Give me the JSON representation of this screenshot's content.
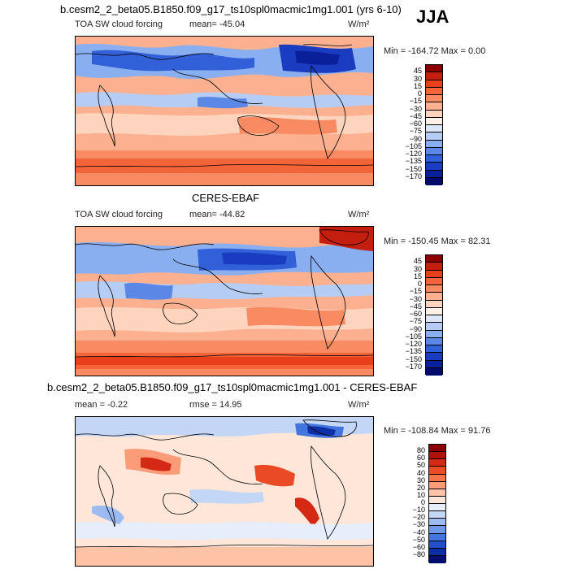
{
  "season": "JJA",
  "panels": [
    {
      "title": "b.cesm2_2_beta05.B1850.f09_g17_ts10spl0macmic1mg1.001 (yrs 6-10)",
      "variable": "TOA SW cloud forcing",
      "stat1": "mean= -45.04",
      "stat2": "",
      "units": "W/m²",
      "minmax": "Min = -164.72 Max =    0.00",
      "levels": [
        "45",
        "30",
        "15",
        "0",
        "−15",
        "−30",
        "−45",
        "−60",
        "−75",
        "−90",
        "−105",
        "−120",
        "−135",
        "−150",
        "−170"
      ],
      "colors": [
        "#8b0000",
        "#c41e0e",
        "#e8401a",
        "#f4643a",
        "#f98b63",
        "#fbb08f",
        "#fdd4bd",
        "#fef0e6",
        "#dce8fa",
        "#b5cdf5",
        "#8aaff0",
        "#5b88e6",
        "#3160d8",
        "#1a3cc0",
        "#0a1f9a",
        "#000c6a"
      ]
    },
    {
      "title": "CERES-EBAF",
      "variable": "TOA SW cloud forcing",
      "stat1": "mean= -44.82",
      "stat2": "",
      "units": "W/m²",
      "minmax": "Min = -150.45 Max =  82.31",
      "levels": [
        "45",
        "30",
        "15",
        "0",
        "−15",
        "−30",
        "−45",
        "−60",
        "−75",
        "−90",
        "−105",
        "−120",
        "−135",
        "−150",
        "−170"
      ],
      "colors": [
        "#8b0000",
        "#c41e0e",
        "#e8401a",
        "#f4643a",
        "#f98b63",
        "#fbb08f",
        "#fdd4bd",
        "#fef0e6",
        "#dce8fa",
        "#b5cdf5",
        "#8aaff0",
        "#5b88e6",
        "#3160d8",
        "#1a3cc0",
        "#0a1f9a",
        "#000c6a"
      ]
    },
    {
      "title": "b.cesm2_2_beta05.B1850.f09_g17_ts10spl0macmic1mg1.001 - CERES-EBAF",
      "variable": "",
      "stat1": "mean =  -0.22",
      "stat2": "rmse =  14.95",
      "units": "W/m²",
      "minmax": "Min = -108.84 Max =  91.76",
      "levels": [
        "80",
        "60",
        "50",
        "40",
        "30",
        "20",
        "10",
        "0",
        "−10",
        "−20",
        "−30",
        "−40",
        "−50",
        "−60",
        "−80"
      ],
      "colors": [
        "#8b0000",
        "#b0120a",
        "#d42a15",
        "#ea4a25",
        "#f5744a",
        "#fa9c77",
        "#fcc3a7",
        "#fee6d8",
        "#e6eefb",
        "#c3d6f6",
        "#9cbbf1",
        "#6f98ea",
        "#4474dd",
        "#2350c8",
        "#0d2ea5",
        "#000d70"
      ]
    }
  ]
}
